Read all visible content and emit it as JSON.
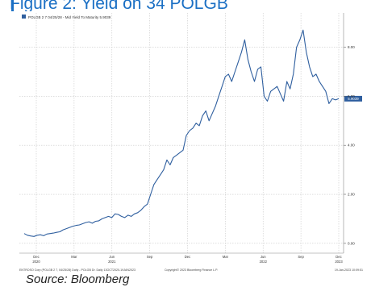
{
  "figure": {
    "title": "Figure 2: Yield on 34 POLGB",
    "source": "Source: Bloomberg"
  },
  "chart_data": {
    "type": "line",
    "legend": "POLGB 2 7 04/25/28 - Mid Yield To Maturity 5.9039",
    "last_value_label": "5.9039",
    "ylim": [
      -0.4,
      9.4
    ],
    "y_ticks": [
      0.0,
      2.0,
      4.0,
      6.0,
      8.0
    ],
    "y_tick_labels": [
      "0.00",
      "2.00",
      "4.00",
      "6.00",
      "8.00"
    ],
    "x_tick_labels": [
      {
        "label": "Dec",
        "year": "2020"
      },
      {
        "label": "Mar",
        "year": ""
      },
      {
        "label": "Jun",
        "year": "2021"
      },
      {
        "label": "Sep",
        "year": ""
      },
      {
        "label": "Dec",
        "year": ""
      },
      {
        "label": "Mar",
        "year": ""
      },
      {
        "label": "Jun",
        "year": "2022"
      },
      {
        "label": "Sep",
        "year": ""
      },
      {
        "label": "Dec",
        "year": "2023"
      }
    ],
    "grid": true,
    "legend_position": "top-left",
    "footer_left": "ENTROSO Corp (POLGB 2 7, 04/25/28) Daily - POLGB Dr. Daily 13OCT2020-19JAN2023",
    "footer_center": "Copyright© 2023 Bloomberg Finance L.P.",
    "footer_right": "19-Jan-2023 10:09:51",
    "series": [
      {
        "color": "#2f5f9f",
        "values": [
          0.4,
          0.33,
          0.3,
          0.28,
          0.33,
          0.35,
          0.31,
          0.38,
          0.4,
          0.42,
          0.45,
          0.47,
          0.55,
          0.6,
          0.65,
          0.7,
          0.73,
          0.75,
          0.8,
          0.85,
          0.88,
          0.82,
          0.9,
          0.92,
          1.0,
          1.05,
          1.1,
          1.05,
          1.2,
          1.18,
          1.1,
          1.05,
          1.15,
          1.1,
          1.2,
          1.25,
          1.35,
          1.5,
          1.6,
          2.0,
          2.4,
          2.6,
          2.8,
          3.0,
          3.4,
          3.2,
          3.5,
          3.6,
          3.7,
          3.8,
          4.4,
          4.6,
          4.7,
          4.9,
          4.8,
          5.2,
          5.4,
          5.0,
          5.3,
          5.6,
          6.0,
          6.4,
          6.8,
          6.9,
          6.6,
          7.0,
          7.4,
          7.8,
          8.3,
          7.5,
          7.0,
          6.6,
          7.1,
          7.2,
          6.0,
          5.8,
          6.2,
          6.3,
          6.4,
          6.1,
          5.8,
          6.6,
          6.3,
          6.9,
          8.0,
          8.3,
          8.7,
          7.8,
          7.2,
          6.8,
          6.9,
          6.6,
          6.4,
          6.2,
          5.7,
          5.9,
          5.85,
          5.9
        ]
      }
    ]
  }
}
